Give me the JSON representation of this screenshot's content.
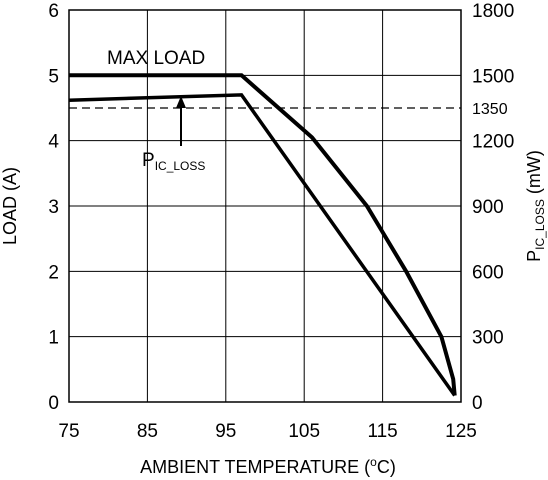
{
  "chart_data": {
    "type": "line",
    "xlabel": "AMBIENT TEMPERATURE (",
    "xlabel_unit_sup": "o",
    "xlabel_unit_tail": "C)",
    "ylabel_left": "LOAD (A)",
    "ylabel_right_main": "P",
    "ylabel_right_sub": "IC_LOSS",
    "ylabel_right_unit": " (mW)",
    "xlim": [
      75,
      125
    ],
    "ylim_left": [
      0,
      6
    ],
    "ylim_right": [
      0,
      1800
    ],
    "x_ticks": [
      "75",
      "85",
      "95",
      "105",
      "115",
      "125"
    ],
    "y_left_ticks": [
      "0",
      "1",
      "2",
      "3",
      "4",
      "5",
      "6"
    ],
    "y_right_ticks": [
      "0",
      "300",
      "600",
      "900",
      "1200",
      "1500",
      "1800"
    ],
    "grid": true,
    "reference_line": {
      "axis": "right",
      "value": 1350,
      "label": "1350",
      "style": "dashed"
    },
    "series": [
      {
        "name": "MAX LOAD",
        "axis": "left",
        "points": [
          [
            75,
            5.0
          ],
          [
            97,
            5.0
          ],
          [
            106,
            4.05
          ],
          [
            113,
            3.0
          ],
          [
            118,
            2.0
          ],
          [
            122.5,
            1.0
          ],
          [
            124,
            0.35
          ],
          [
            124.2,
            0.1
          ]
        ]
      },
      {
        "name": "P",
        "name_sub": "IC_LOSS",
        "axis": "right",
        "points": [
          [
            75,
            1386
          ],
          [
            97,
            1410
          ],
          [
            124.2,
            30
          ]
        ]
      }
    ]
  }
}
